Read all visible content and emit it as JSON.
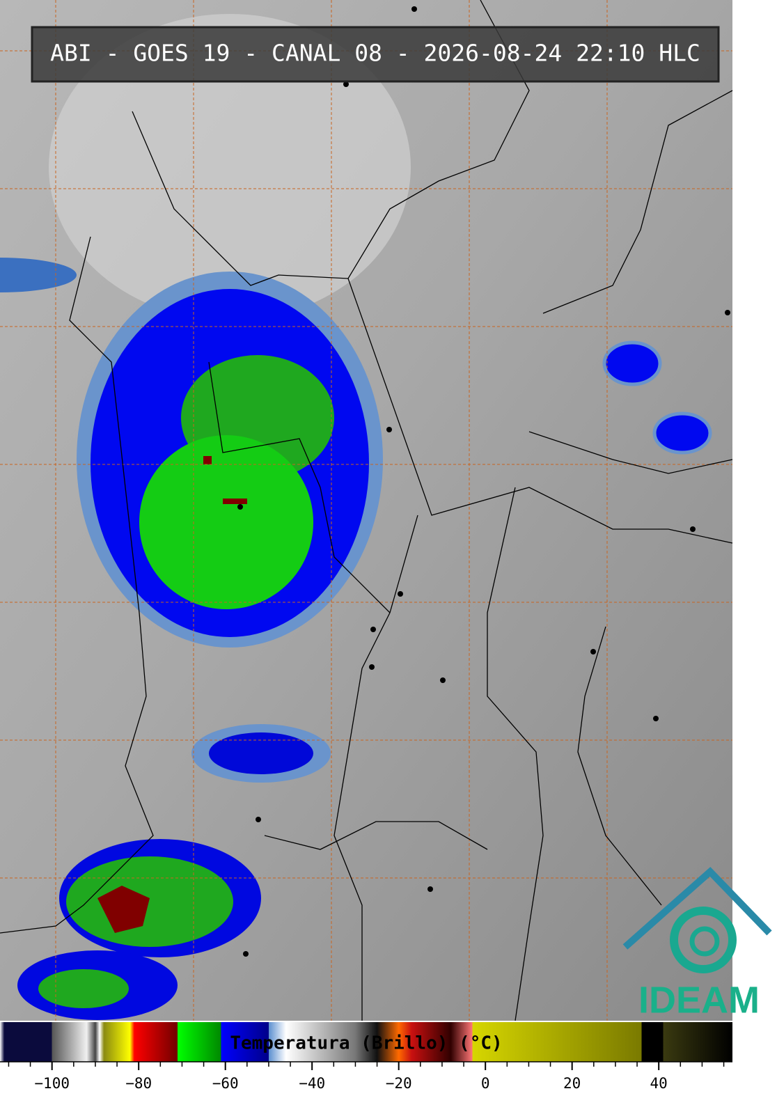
{
  "header": {
    "title": "ABI - GOES 19 - CANAL 08 - 2026-08-24 22:10 HLC"
  },
  "colorbar": {
    "label": "Temperatura (Brillo) (°C)",
    "lim": [
      -112,
      57
    ],
    "ticks": [
      {
        "value": -100,
        "label": "−100"
      },
      {
        "value": -80,
        "label": "−80"
      },
      {
        "value": -60,
        "label": "−60"
      },
      {
        "value": -40,
        "label": "−40"
      },
      {
        "value": -20,
        "label": "−20"
      },
      0,
      20,
      40
    ],
    "minor_ticks": [
      -110,
      -105,
      -95,
      -90,
      -85,
      -75,
      -70,
      -65,
      -55,
      -50,
      -45,
      -35,
      -30,
      -25,
      -15,
      -10,
      -5,
      5,
      10,
      15,
      25,
      30,
      35,
      45,
      50,
      55
    ],
    "stops": [
      {
        "value": -112,
        "color": "#ffffff"
      },
      {
        "value": -111,
        "color": "#0b0b3d"
      },
      {
        "value": -100,
        "color": "#0b0b3d"
      },
      {
        "value": -100,
        "color": "#555555"
      },
      {
        "value": -92,
        "color": "#f0f0f0"
      },
      {
        "value": -90,
        "color": "#444444"
      },
      {
        "value": -89,
        "color": "#ffffff"
      },
      {
        "value": -88,
        "color": "#8a8a10"
      },
      {
        "value": -82,
        "color": "#ffff00"
      },
      {
        "value": -81,
        "color": "#ff0000"
      },
      {
        "value": -71,
        "color": "#700000"
      },
      {
        "value": -71,
        "color": "#00ff00"
      },
      {
        "value": -61,
        "color": "#008800"
      },
      {
        "value": -61,
        "color": "#0000ff"
      },
      {
        "value": -50,
        "color": "#00008a"
      },
      {
        "value": -50,
        "color": "#5b8fd0"
      },
      {
        "value": -46,
        "color": "#ffffff"
      },
      {
        "value": -30,
        "color": "#777777"
      },
      {
        "value": -25,
        "color": "#101010"
      },
      {
        "value": -20,
        "color": "#ff6a00"
      },
      {
        "value": -17,
        "color": "#c81010"
      },
      {
        "value": -8,
        "color": "#300000"
      },
      {
        "value": -3,
        "color": "#ff7777"
      },
      {
        "value": -3,
        "color": "#d6d600"
      },
      {
        "value": 36,
        "color": "#7a7a00"
      },
      {
        "value": 36,
        "color": "#000000"
      },
      {
        "value": 41,
        "color": "#000000"
      },
      {
        "value": 41,
        "color": "#3a3a10"
      },
      {
        "value": 57,
        "color": "#000000"
      }
    ]
  },
  "logo": {
    "text": "IDEAM"
  }
}
